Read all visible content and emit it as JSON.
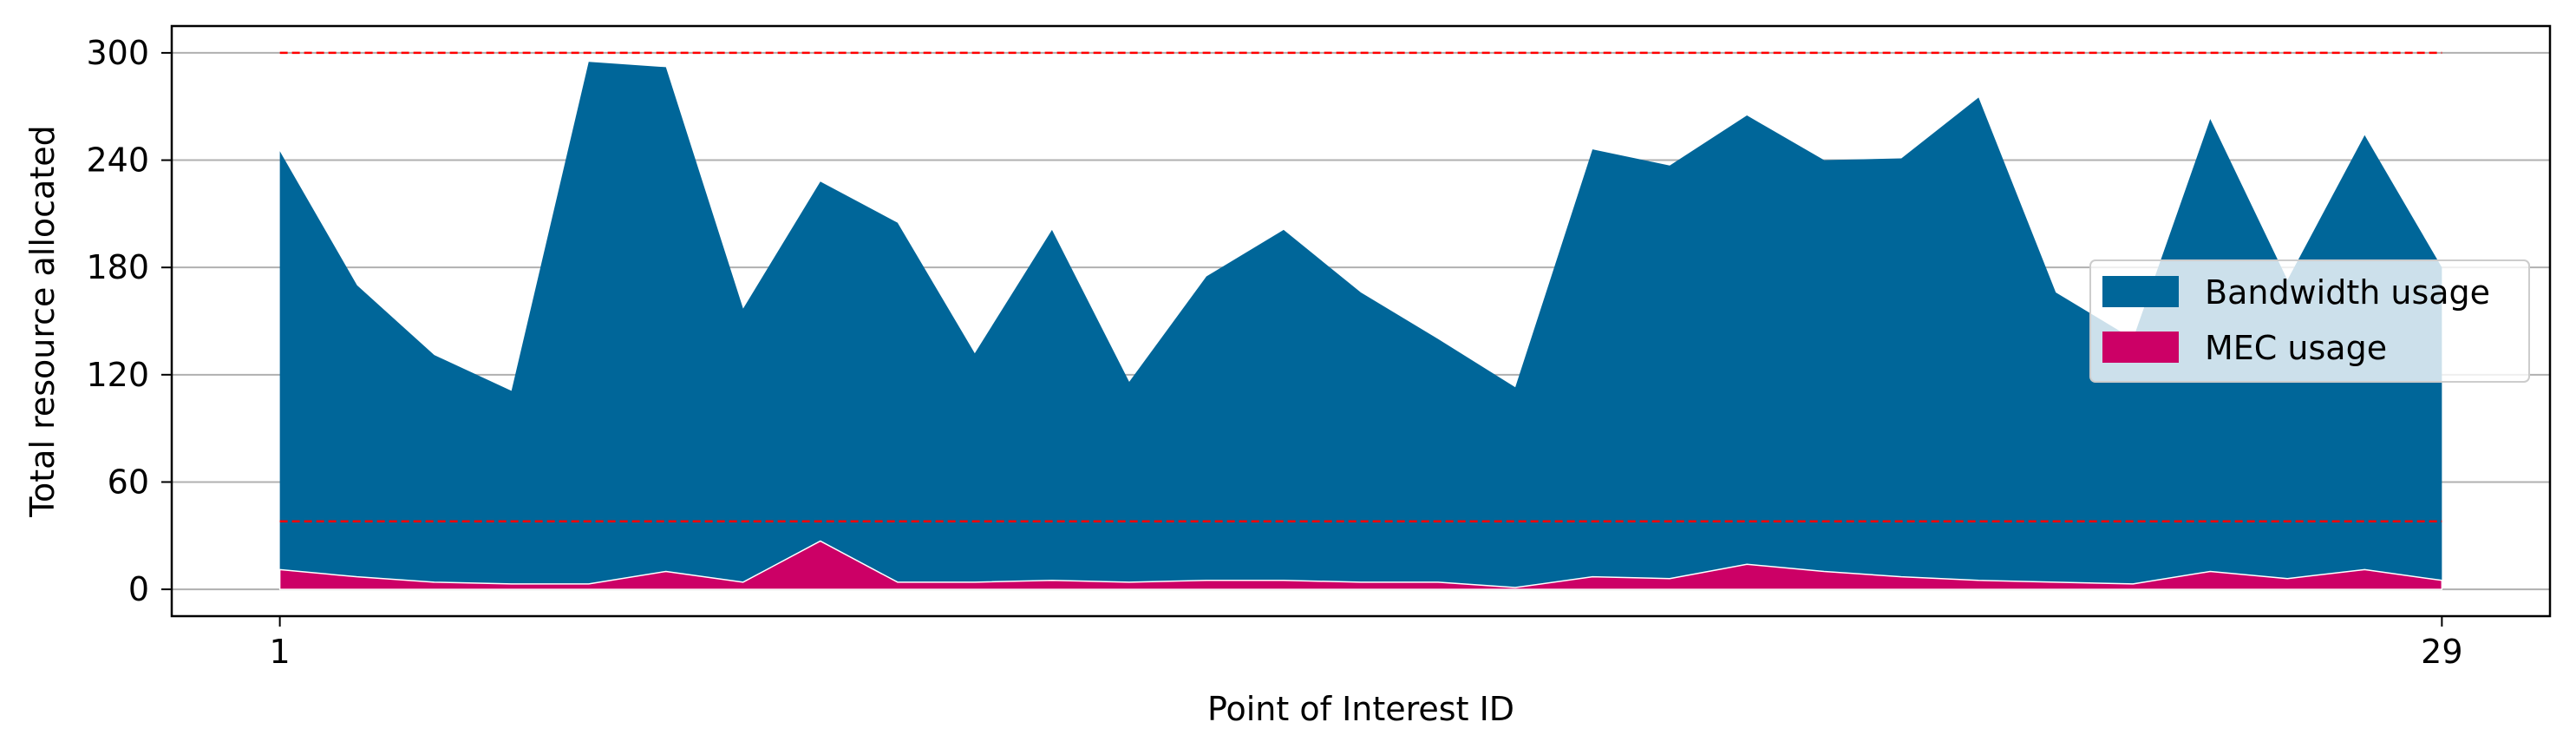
{
  "chart_data": {
    "type": "area",
    "stacked": false,
    "title": "",
    "xlabel": "Point of Interest ID",
    "ylabel": "Total resource allocated",
    "x": [
      1,
      2,
      3,
      4,
      5,
      6,
      7,
      8,
      9,
      10,
      11,
      12,
      13,
      14,
      15,
      16,
      17,
      18,
      19,
      20,
      21,
      22,
      23,
      24,
      25,
      26,
      27,
      28,
      29
    ],
    "xlim": [
      -0.4,
      30.4
    ],
    "ylim": [
      -15,
      315
    ],
    "xticks": [
      1,
      29
    ],
    "yticks": [
      0,
      60,
      120,
      180,
      240,
      300
    ],
    "grid": "horizontal",
    "legend_position": "center-right",
    "series": [
      {
        "name": "Bandwidth usage",
        "color": "#006699",
        "values": [
          245,
          170,
          131,
          111,
          295,
          292,
          157,
          228,
          205,
          132,
          201,
          116,
          175,
          201,
          166,
          140,
          113,
          246,
          237,
          265,
          240,
          241,
          275,
          166,
          140,
          263,
          173,
          254,
          180
        ]
      },
      {
        "name": "MEC usage",
        "color": "#cc0066",
        "values": [
          11,
          7,
          4,
          3,
          3,
          10,
          4,
          27,
          4,
          4,
          5,
          4,
          5,
          5,
          4,
          4,
          1,
          7,
          6,
          14,
          10,
          7,
          5,
          4,
          3,
          10,
          6,
          11,
          5
        ]
      }
    ],
    "reference_lines": [
      {
        "y": 300,
        "color": "#ff0000",
        "style": "dashed",
        "x_start": 1,
        "x_end": 29
      },
      {
        "y": 38,
        "color": "#ff0000",
        "style": "dashed",
        "x_start": 1,
        "x_end": 29
      }
    ]
  }
}
